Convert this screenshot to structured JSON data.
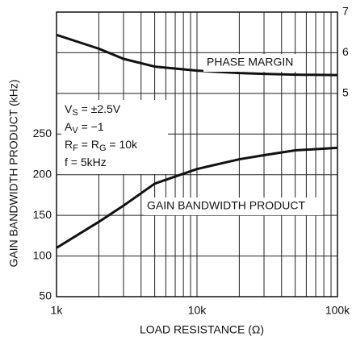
{
  "chart_data": {
    "type": "line",
    "x_label": "LOAD RESISTANCE (Ω)",
    "y_label": "GAIN BANDWIDTH PRODUCT (kHz)",
    "x": [
      1000,
      2000,
      3000,
      5000,
      10000,
      20000,
      30000,
      50000,
      100000
    ],
    "series": [
      {
        "name": "GAIN BANDWIDTH PRODUCT",
        "color": "#111111",
        "values": [
          110,
          142,
          162,
          189,
          207,
          219,
          224,
          230,
          233
        ]
      },
      {
        "name": "PHASE MARGIN",
        "color": "#111111",
        "axis": "y2",
        "values": [
          6.44,
          6.1,
          5.85,
          5.66,
          5.56,
          5.5,
          5.48,
          5.46,
          5.45
        ]
      }
    ],
    "xlim": [
      1000,
      100000
    ],
    "xlog": true,
    "xticks": [
      {
        "value": 1000,
        "label": "1k"
      },
      {
        "value": 10000,
        "label": "10k"
      },
      {
        "value": 100000,
        "label": "100k"
      }
    ],
    "ylim": [
      50,
      400
    ],
    "yticks": [
      50,
      100,
      150,
      200,
      250
    ],
    "y2lim": [
      0,
      7
    ],
    "y2ticks": [
      5,
      6,
      7
    ],
    "grid": true,
    "conditions": [
      {
        "main": "V",
        "sub": "S",
        "rest": " = ±2.5V"
      },
      {
        "main": "A",
        "sub": "V",
        "rest": " = −1"
      },
      {
        "main": "R",
        "sub": "F",
        "rest": " = R",
        "sub2": "G",
        "rest2": " = 10k"
      },
      {
        "main": "f = 5kHz"
      }
    ]
  }
}
